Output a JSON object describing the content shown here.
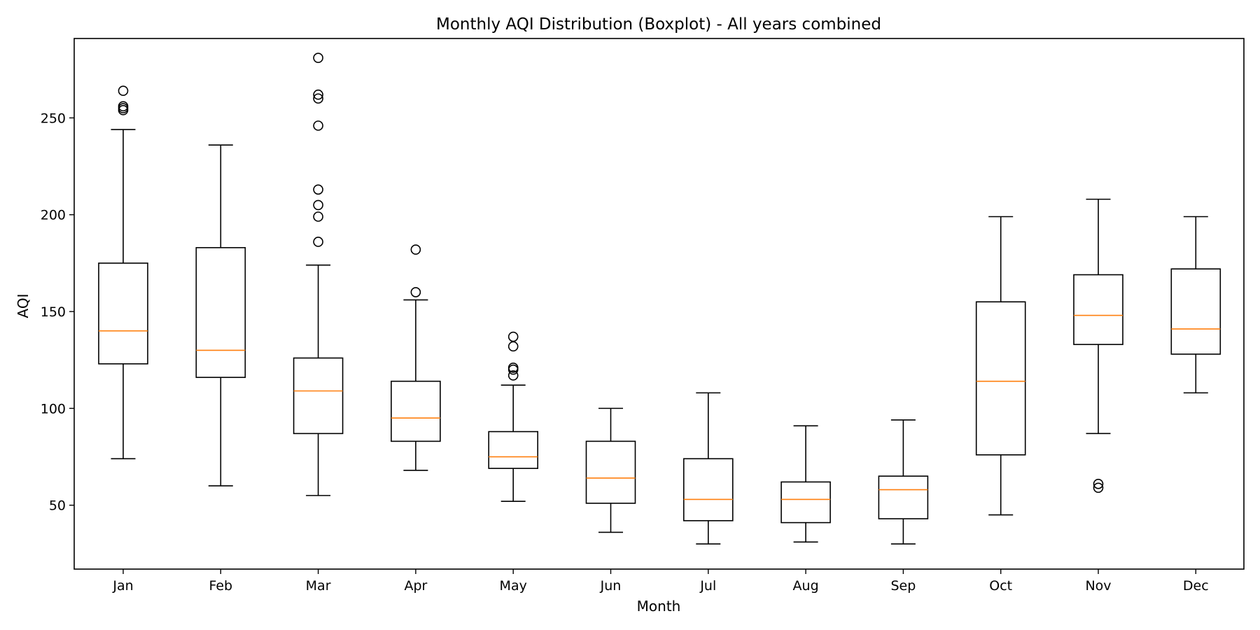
{
  "chart_data": {
    "type": "boxplot",
    "title": "Monthly AQI Distribution (Boxplot) - All years combined",
    "xlabel": "Month",
    "ylabel": "AQI",
    "ylim": [
      17,
      291
    ],
    "yticks": [
      50,
      100,
      150,
      200,
      250
    ],
    "grid": false,
    "legend": "none",
    "colors": {
      "box": "#000000",
      "median": "#ff7f0e",
      "flier": "#000000"
    },
    "categories": [
      "Jan",
      "Feb",
      "Mar",
      "Apr",
      "May",
      "Jun",
      "Jul",
      "Aug",
      "Sep",
      "Oct",
      "Nov",
      "Dec"
    ],
    "boxes": [
      {
        "label": "Jan",
        "whisker_low": 74,
        "q1": 123,
        "median": 140,
        "q3": 175,
        "whisker_high": 244,
        "outliers": [
          254,
          255,
          256,
          264
        ]
      },
      {
        "label": "Feb",
        "whisker_low": 60,
        "q1": 116,
        "median": 130,
        "q3": 183,
        "whisker_high": 236,
        "outliers": []
      },
      {
        "label": "Mar",
        "whisker_low": 55,
        "q1": 87,
        "median": 109,
        "q3": 126,
        "whisker_high": 174,
        "outliers": [
          186,
          199,
          205,
          213,
          246,
          260,
          262,
          281
        ]
      },
      {
        "label": "Apr",
        "whisker_low": 68,
        "q1": 83,
        "median": 95,
        "q3": 114,
        "whisker_high": 156,
        "outliers": [
          160,
          182
        ]
      },
      {
        "label": "May",
        "whisker_low": 52,
        "q1": 69,
        "median": 75,
        "q3": 88,
        "whisker_high": 112,
        "outliers": [
          117,
          120,
          121,
          132,
          137
        ]
      },
      {
        "label": "Jun",
        "whisker_low": 36,
        "q1": 51,
        "median": 64,
        "q3": 83,
        "whisker_high": 100,
        "outliers": []
      },
      {
        "label": "Jul",
        "whisker_low": 30,
        "q1": 42,
        "median": 53,
        "q3": 74,
        "whisker_high": 108,
        "outliers": []
      },
      {
        "label": "Aug",
        "whisker_low": 31,
        "q1": 41,
        "median": 53,
        "q3": 62,
        "whisker_high": 91,
        "outliers": []
      },
      {
        "label": "Sep",
        "whisker_low": 30,
        "q1": 43,
        "median": 58,
        "q3": 65,
        "whisker_high": 94,
        "outliers": []
      },
      {
        "label": "Oct",
        "whisker_low": 45,
        "q1": 76,
        "median": 114,
        "q3": 155,
        "whisker_high": 199,
        "outliers": []
      },
      {
        "label": "Nov",
        "whisker_low": 87,
        "q1": 133,
        "median": 148,
        "q3": 169,
        "whisker_high": 208,
        "outliers": [
          59,
          61
        ]
      },
      {
        "label": "Dec",
        "whisker_low": 108,
        "q1": 128,
        "median": 141,
        "q3": 172,
        "whisker_high": 199,
        "outliers": []
      }
    ]
  }
}
